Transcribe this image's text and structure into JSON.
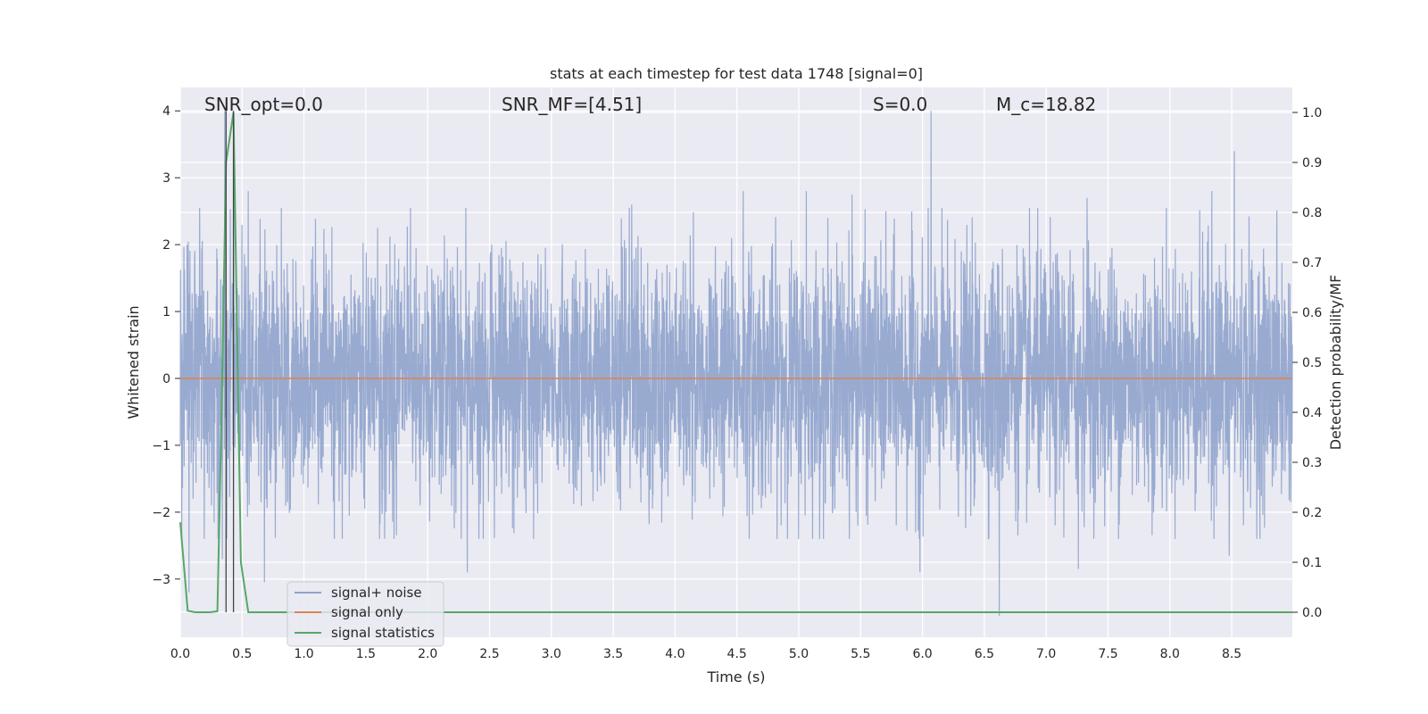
{
  "chart_data": {
    "type": "line",
    "title": "stats at each timestep for test data 1748 [signal=0]",
    "xlabel": "Time (s)",
    "ylabel_left": "Whitened strain",
    "ylabel_right": "Detection probability/MF",
    "xlim": [
      0.0,
      8.99
    ],
    "ylim_left": [
      -3.87,
      4.35
    ],
    "ylim_right": [
      -0.05,
      1.05
    ],
    "x_ticks": [
      0.0,
      0.5,
      1.0,
      1.5,
      2.0,
      2.5,
      3.0,
      3.5,
      4.0,
      4.5,
      5.0,
      5.5,
      6.0,
      6.5,
      7.0,
      7.5,
      8.0,
      8.5
    ],
    "x_tick_labels": [
      "0.0",
      "0.5",
      "1.0",
      "1.5",
      "2.0",
      "2.5",
      "3.0",
      "3.5",
      "4.0",
      "4.5",
      "5.0",
      "5.5",
      "6.0",
      "6.5",
      "7.0",
      "7.5",
      "8.0",
      "8.5"
    ],
    "y_left_ticks": [
      -3,
      -2,
      -1,
      0,
      1,
      2,
      3,
      4
    ],
    "y_left_tick_labels": [
      "−3",
      "−2",
      "−1",
      "0",
      "1",
      "2",
      "3",
      "4"
    ],
    "y_right_ticks": [
      0.0,
      0.1,
      0.2,
      0.3,
      0.4,
      0.5,
      0.6,
      0.7,
      0.8,
      0.9,
      1.0
    ],
    "y_right_tick_labels": [
      "0.0",
      "0.1",
      "0.2",
      "0.3",
      "0.4",
      "0.5",
      "0.6",
      "0.7",
      "0.8",
      "0.9",
      "1.0"
    ],
    "grid": true,
    "legend_position": "lower-left",
    "annotations": [
      {
        "text": "SNR_opt=0.0",
        "x": 0.19
      },
      {
        "text": "SNR_MF=[4.51]",
        "x": 2.6
      },
      {
        "text": "S=0.0",
        "x": 5.6
      },
      {
        "text": "M_c=18.82",
        "x": 6.6
      }
    ],
    "vertical_lines": [
      0.37,
      0.43
    ],
    "noise_envelope": {
      "note": "dense whitened strain trace spanning roughly -2.3 to 2.3 with spikes",
      "spikes": [
        {
          "x": 0.36,
          "y": 4.0
        },
        {
          "x": 0.43,
          "y": 3.9
        },
        {
          "x": 0.07,
          "y": -3.2
        },
        {
          "x": 0.34,
          "y": -2.7
        },
        {
          "x": 0.55,
          "y": 2.8
        },
        {
          "x": 0.68,
          "y": -3.05
        },
        {
          "x": 2.32,
          "y": -2.9
        },
        {
          "x": 3.65,
          "y": 2.6
        },
        {
          "x": 4.55,
          "y": 2.8
        },
        {
          "x": 5.06,
          "y": 2.8
        },
        {
          "x": 5.43,
          "y": 2.75
        },
        {
          "x": 6.07,
          "y": 4.0
        },
        {
          "x": 5.98,
          "y": -2.9
        },
        {
          "x": 6.62,
          "y": -3.55
        },
        {
          "x": 7.26,
          "y": -2.85
        },
        {
          "x": 7.33,
          "y": 2.7
        },
        {
          "x": 8.34,
          "y": 2.8
        },
        {
          "x": 8.52,
          "y": 3.4
        },
        {
          "x": 8.48,
          "y": -2.65
        }
      ]
    },
    "series": [
      {
        "name": "signal+ noise",
        "color": "#8fa3cc",
        "axis": "left"
      },
      {
        "name": "signal only",
        "color": "#dd8452",
        "axis": "left",
        "x": [
          0.0,
          8.99
        ],
        "y": [
          0.0,
          0.0
        ]
      },
      {
        "name": "signal statistics",
        "color": "#55a868",
        "axis": "right",
        "x": [
          0.0,
          0.06,
          0.12,
          0.18,
          0.24,
          0.3,
          0.33,
          0.37,
          0.43,
          0.49,
          0.55,
          0.61,
          1.0,
          2.0,
          3.0,
          4.0,
          5.0,
          6.0,
          7.0,
          8.0,
          8.99
        ],
        "y": [
          0.18,
          0.003,
          0.0,
          0.0,
          0.0,
          0.002,
          0.35,
          0.9,
          1.0,
          0.1,
          0.0,
          0.0,
          0.0,
          0.0,
          0.0,
          0.0,
          0.0,
          0.0,
          0.0,
          0.0,
          0.0
        ]
      }
    ]
  }
}
